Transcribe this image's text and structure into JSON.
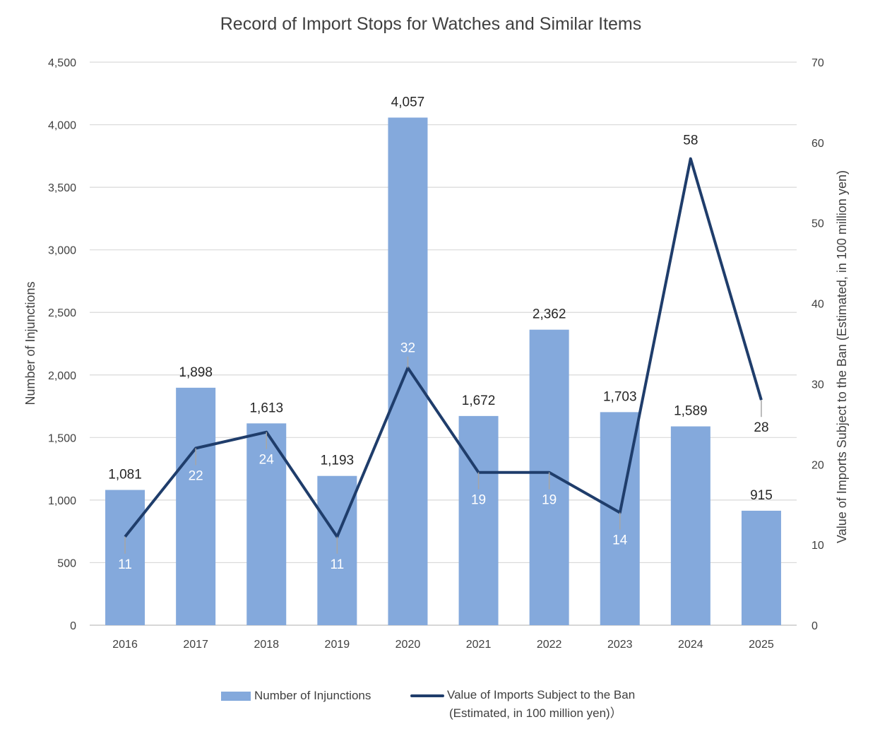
{
  "chart_data": {
    "type": "bar",
    "title": "Record of Import Stops for Watches and Similar Items",
    "categories": [
      "2016",
      "2017",
      "2018",
      "2019",
      "2020",
      "2021",
      "2022",
      "2023",
      "2024",
      "2025"
    ],
    "series": [
      {
        "name": "Number of Injunctions",
        "type": "bar",
        "axis": "left",
        "color": "#84a9dc",
        "values": [
          1081,
          1898,
          1613,
          1193,
          4057,
          1672,
          2362,
          1703,
          1589,
          915
        ],
        "labels": [
          "1,081",
          "1,898",
          "1,613",
          "1,193",
          "4,057",
          "1,672",
          "2,362",
          "1,703",
          "1,589",
          "915"
        ]
      },
      {
        "name": "Value of Imports Subject to the Ban (Estimated, in 100 million yen)）",
        "type": "line",
        "axis": "right",
        "color": "#1f3d6b",
        "values": [
          11,
          22,
          24,
          11,
          32,
          19,
          19,
          14,
          58,
          28
        ],
        "labels": [
          "11",
          "22",
          "24",
          "11",
          "32",
          "19",
          "19",
          "14",
          "58",
          "28"
        ]
      }
    ],
    "y_left": {
      "label": "Number of Injunctions",
      "ylim": [
        0,
        4500
      ],
      "ticks": [
        "0",
        "500",
        "1,000",
        "1,500",
        "2,000",
        "2,500",
        "3,000",
        "3,500",
        "4,000",
        "4,500"
      ]
    },
    "y_right": {
      "label": "Value of Imports Subject to the Ban (Estimated, in 100 million yen)",
      "ylim": [
        0,
        70
      ],
      "ticks": [
        "0",
        "10",
        "20",
        "30",
        "40",
        "50",
        "60",
        "70"
      ]
    },
    "grid": true,
    "legend": {
      "position": "bottom",
      "bar_label": "Number of Injunctions",
      "line_label_1": "Value of Imports Subject to the Ban",
      "line_label_2": "(Estimated, in 100 million yen)）"
    }
  }
}
